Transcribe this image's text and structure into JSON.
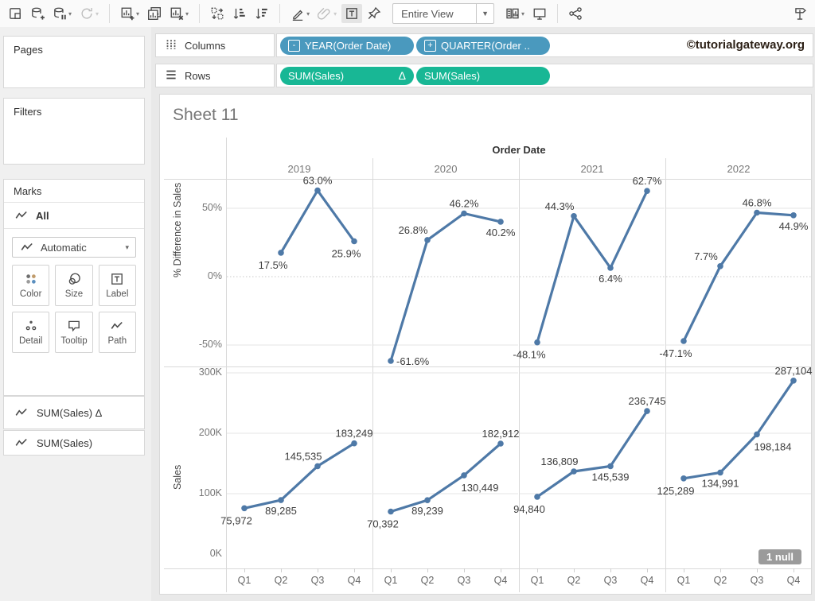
{
  "toolbar": {
    "fit_selector": "Entire View",
    "items": [
      {
        "name": "save",
        "icon": "save"
      },
      {
        "name": "add-data-source",
        "icon": "add-data"
      },
      {
        "name": "pause-auto-updates",
        "icon": "pause-data",
        "caret": true
      },
      {
        "name": "run-auto-updates",
        "icon": "refresh",
        "caret": true,
        "disabled": true
      },
      {
        "sep": true
      },
      {
        "name": "new-worksheet",
        "icon": "new-sheet",
        "caret": true
      },
      {
        "name": "duplicate-sheet",
        "icon": "duplicate"
      },
      {
        "name": "clear-sheet",
        "icon": "clear-sheet",
        "caret": true
      },
      {
        "sep": true
      },
      {
        "name": "swap-rows-columns",
        "icon": "swap"
      },
      {
        "name": "sort-ascending",
        "icon": "sort-asc"
      },
      {
        "name": "sort-descending",
        "icon": "sort-desc"
      },
      {
        "sep": true
      },
      {
        "name": "highlight",
        "icon": "pen",
        "caret": true
      },
      {
        "name": "group-members",
        "icon": "paperclip",
        "caret": true,
        "disabled": true
      },
      {
        "name": "show-mark-labels",
        "icon": "mark-label",
        "active": true
      },
      {
        "name": "fix-axes",
        "icon": "pin"
      },
      {
        "dropdown": true
      },
      {
        "name": "show-hide-cards",
        "icon": "cards",
        "caret": true
      },
      {
        "name": "presentation-mode",
        "icon": "presentation"
      },
      {
        "sep": true
      },
      {
        "name": "share",
        "icon": "share"
      },
      {
        "spacer": true
      },
      {
        "name": "show-me",
        "icon": "show-me"
      }
    ]
  },
  "shelves": {
    "columns": {
      "label": "Columns",
      "pills": [
        {
          "text": "YEAR(Order Date)",
          "prefix": "-",
          "color": "blue"
        },
        {
          "text": "QUARTER(Order ..",
          "prefix": "+",
          "color": "blue"
        }
      ]
    },
    "rows": {
      "label": "Rows",
      "pills": [
        {
          "text": "SUM(Sales)",
          "suffix": "Δ",
          "color": "green"
        },
        {
          "text": "SUM(Sales)",
          "color": "green"
        }
      ]
    }
  },
  "watermark": "©tutorialgateway.org",
  "sidebar": {
    "pages_label": "Pages",
    "filters_label": "Filters",
    "marks": {
      "title": "Marks",
      "all_label": "All",
      "mark_type": "Automatic",
      "buttons": [
        {
          "icon": "color",
          "label": "Color"
        },
        {
          "icon": "size",
          "label": "Size"
        },
        {
          "icon": "mark-label",
          "label": "Label"
        },
        {
          "icon": "detail",
          "label": "Detail"
        },
        {
          "icon": "tooltip",
          "label": "Tooltip"
        },
        {
          "icon": "path",
          "label": "Path"
        }
      ]
    },
    "fields": [
      {
        "icon": "line",
        "label": "SUM(Sales) Δ"
      },
      {
        "icon": "line",
        "label": "SUM(Sales)"
      }
    ]
  },
  "sheet": {
    "title": "Sheet 11",
    "null_badge": "1 null"
  },
  "chart_data": {
    "type": "line",
    "facet_header": "Order Date",
    "years": [
      "2019",
      "2020",
      "2021",
      "2022"
    ],
    "quarters": [
      "Q1",
      "Q2",
      "Q3",
      "Q4"
    ],
    "line_color": "#4e79a7",
    "rows": [
      {
        "axis_label": "% Difference in Sales",
        "ticks": [
          {
            "value": 50,
            "label": "50%",
            "grid": "solid"
          },
          {
            "value": 0,
            "label": "0%",
            "grid": "dotted"
          },
          {
            "value": -50,
            "label": "-50%",
            "grid": "solid"
          }
        ],
        "ylim": [
          -70,
          72
        ],
        "series": [
          {
            "year": "2019",
            "values": [
              null,
              17.5,
              63.0,
              25.9
            ],
            "labels": [
              "",
              "17.5%",
              "63.0%",
              "25.9%"
            ],
            "label_pos": [
              "",
              "bl",
              "a",
              "bl"
            ]
          },
          {
            "year": "2020",
            "values": [
              -61.6,
              26.8,
              46.2,
              40.2
            ],
            "labels": [
              "-61.6%",
              "26.8%",
              "46.2%",
              "40.2%"
            ],
            "label_pos": [
              "r",
              "al",
              "a",
              "b"
            ]
          },
          {
            "year": "2021",
            "values": [
              -48.1,
              44.3,
              6.4,
              62.7
            ],
            "labels": [
              "-48.1%",
              "44.3%",
              "6.4%",
              "62.7%"
            ],
            "label_pos": [
              "bl",
              "al",
              "b",
              "a"
            ]
          },
          {
            "year": "2022",
            "values": [
              -47.1,
              7.7,
              46.8,
              44.9
            ],
            "labels": [
              "-47.1%",
              "7.7%",
              "46.8%",
              "44.9%"
            ],
            "label_pos": [
              "bl",
              "al",
              "a",
              "b"
            ]
          }
        ]
      },
      {
        "axis_label": "Sales",
        "ticks": [
          {
            "value": 300000,
            "label": "300K",
            "grid": "solid"
          },
          {
            "value": 200000,
            "label": "200K",
            "grid": "solid"
          },
          {
            "value": 100000,
            "label": "100K",
            "grid": "solid"
          },
          {
            "value": 0,
            "label": "0K",
            "grid": "none"
          }
        ],
        "ylim": [
          0,
          320000
        ],
        "series": [
          {
            "year": "2019",
            "values": [
              75972,
              89285,
              145535,
              183249
            ],
            "labels": [
              "75,972",
              "89,285",
              "145,535",
              "183,249"
            ],
            "label_pos": [
              "bl",
              "b",
              "al",
              "a"
            ]
          },
          {
            "year": "2020",
            "values": [
              70392,
              89239,
              130449,
              182912
            ],
            "labels": [
              "70,392",
              "89,239",
              "130,449",
              "182,912"
            ],
            "label_pos": [
              "bl",
              "b",
              "br",
              "a"
            ]
          },
          {
            "year": "2021",
            "values": [
              94840,
              136809,
              145539,
              236745
            ],
            "labels": [
              "94,840",
              "136,809",
              "145,539",
              "236,745"
            ],
            "label_pos": [
              "bl",
              "al",
              "b",
              "a"
            ]
          },
          {
            "year": "2022",
            "values": [
              125289,
              134991,
              198184,
              287104
            ],
            "labels": [
              "125,289",
              "134,991",
              "198,184",
              "287,104"
            ],
            "label_pos": [
              "bl",
              "b",
              "br",
              "a"
            ]
          }
        ]
      }
    ]
  }
}
